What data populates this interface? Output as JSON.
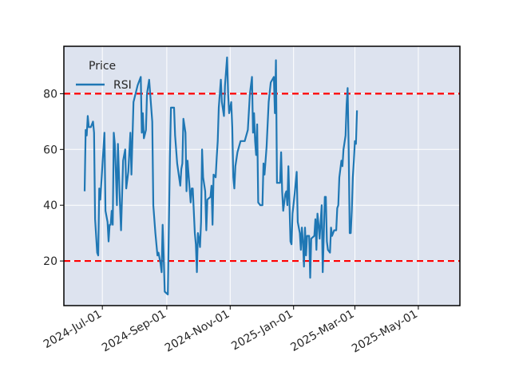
{
  "chart_data": {
    "type": "line",
    "title": "",
    "xlabel": "",
    "ylabel": "",
    "legend_title": "Price",
    "legend_location": "top-left",
    "grid": true,
    "xlim": [
      "2024-05-25",
      "2025-06-10"
    ],
    "ylim": [
      4,
      97
    ],
    "x_ticks": [
      "2024-07-01",
      "2024-09-01",
      "2024-11-01",
      "2025-01-01",
      "2025-03-01",
      "2025-05-01"
    ],
    "x_tick_labels": [
      "2024-Jul-01",
      "2024-Sep-01",
      "2024-Nov-01",
      "2025-Jan-01",
      "2025-Mar-01",
      "2025-May-01"
    ],
    "y_ticks": [
      20,
      40,
      60,
      80
    ],
    "y_tick_labels": [
      "20",
      "40",
      "60",
      "80"
    ],
    "reference_lines": [
      {
        "value": 80,
        "color": "#ff0000",
        "style": "dashed"
      },
      {
        "value": 20,
        "color": "#ff0000",
        "style": "dashed"
      }
    ],
    "series": [
      {
        "name": "RSI",
        "color": "#1f77b4",
        "points": [
          [
            "2024-06-14",
            45
          ],
          [
            "2024-06-15",
            67
          ],
          [
            "2024-06-16",
            65
          ],
          [
            "2024-06-17",
            72
          ],
          [
            "2024-06-18",
            68
          ],
          [
            "2024-06-20",
            68
          ],
          [
            "2024-06-22",
            70
          ],
          [
            "2024-06-23",
            66
          ],
          [
            "2024-06-24",
            35
          ],
          [
            "2024-06-26",
            23
          ],
          [
            "2024-06-27",
            22
          ],
          [
            "2024-06-28",
            46
          ],
          [
            "2024-06-29",
            42
          ],
          [
            "2024-07-02",
            60
          ],
          [
            "2024-07-03",
            66
          ],
          [
            "2024-07-04",
            38
          ],
          [
            "2024-07-06",
            34
          ],
          [
            "2024-07-07",
            27
          ],
          [
            "2024-07-08",
            33
          ],
          [
            "2024-07-09",
            33
          ],
          [
            "2024-07-10",
            38
          ],
          [
            "2024-07-11",
            33
          ],
          [
            "2024-07-12",
            66
          ],
          [
            "2024-07-13",
            62
          ],
          [
            "2024-07-14",
            52
          ],
          [
            "2024-07-15",
            40
          ],
          [
            "2024-07-16",
            62
          ],
          [
            "2024-07-18",
            40
          ],
          [
            "2024-07-19",
            31
          ],
          [
            "2024-07-21",
            56
          ],
          [
            "2024-07-23",
            60
          ],
          [
            "2024-07-24",
            46
          ],
          [
            "2024-07-26",
            52
          ],
          [
            "2024-07-28",
            66
          ],
          [
            "2024-07-29",
            51
          ],
          [
            "2024-07-31",
            77
          ],
          [
            "2024-08-02",
            80
          ],
          [
            "2024-08-04",
            83
          ],
          [
            "2024-08-07",
            86
          ],
          [
            "2024-08-08",
            66
          ],
          [
            "2024-08-09",
            73
          ],
          [
            "2024-08-10",
            64
          ],
          [
            "2024-08-12",
            67
          ],
          [
            "2024-08-13",
            80
          ],
          [
            "2024-08-15",
            85
          ],
          [
            "2024-08-18",
            70
          ],
          [
            "2024-08-19",
            40
          ],
          [
            "2024-08-21",
            30
          ],
          [
            "2024-08-23",
            22
          ],
          [
            "2024-08-24",
            23
          ],
          [
            "2024-08-26",
            19
          ],
          [
            "2024-08-27",
            16
          ],
          [
            "2024-08-28",
            33
          ],
          [
            "2024-08-29",
            22
          ],
          [
            "2024-08-30",
            9
          ],
          [
            "2024-09-02",
            8
          ],
          [
            "2024-09-04",
            57
          ],
          [
            "2024-09-05",
            75
          ],
          [
            "2024-09-08",
            75
          ],
          [
            "2024-09-09",
            65
          ],
          [
            "2024-09-11",
            55
          ],
          [
            "2024-09-14",
            47
          ],
          [
            "2024-09-15",
            53
          ],
          [
            "2024-09-16",
            55
          ],
          [
            "2024-09-17",
            71
          ],
          [
            "2024-09-19",
            66
          ],
          [
            "2024-09-20",
            45
          ],
          [
            "2024-09-21",
            56
          ],
          [
            "2024-09-22",
            51
          ],
          [
            "2024-09-24",
            41
          ],
          [
            "2024-09-25",
            46
          ],
          [
            "2024-09-26",
            46
          ],
          [
            "2024-09-28",
            30
          ],
          [
            "2024-09-29",
            26
          ],
          [
            "2024-09-30",
            16
          ],
          [
            "2024-10-01",
            30
          ],
          [
            "2024-10-02",
            28
          ],
          [
            "2024-10-03",
            25
          ],
          [
            "2024-10-04",
            34
          ],
          [
            "2024-10-05",
            60
          ],
          [
            "2024-10-06",
            50
          ],
          [
            "2024-10-08",
            45
          ],
          [
            "2024-10-09",
            31
          ],
          [
            "2024-10-10",
            42
          ],
          [
            "2024-10-13",
            43
          ],
          [
            "2024-10-14",
            47
          ],
          [
            "2024-10-15",
            33
          ],
          [
            "2024-10-16",
            51
          ],
          [
            "2024-10-18",
            50
          ],
          [
            "2024-10-19",
            57
          ],
          [
            "2024-10-20",
            63
          ],
          [
            "2024-10-21",
            75
          ],
          [
            "2024-10-23",
            85
          ],
          [
            "2024-10-24",
            77
          ],
          [
            "2024-10-26",
            72
          ],
          [
            "2024-10-27",
            83
          ],
          [
            "2024-10-29",
            93
          ],
          [
            "2024-10-30",
            80
          ],
          [
            "2024-10-31",
            73
          ],
          [
            "2024-11-02",
            77
          ],
          [
            "2024-11-03",
            68
          ],
          [
            "2024-11-04",
            50
          ],
          [
            "2024-11-05",
            46
          ],
          [
            "2024-11-06",
            54
          ],
          [
            "2024-11-08",
            59
          ],
          [
            "2024-11-11",
            63
          ],
          [
            "2024-11-15",
            63
          ],
          [
            "2024-11-18",
            67
          ],
          [
            "2024-11-20",
            80
          ],
          [
            "2024-11-22",
            86
          ],
          [
            "2024-11-23",
            66
          ],
          [
            "2024-11-24",
            73
          ],
          [
            "2024-11-25",
            63
          ],
          [
            "2024-11-26",
            58
          ],
          [
            "2024-11-27",
            69
          ],
          [
            "2024-11-28",
            41
          ],
          [
            "2024-11-30",
            40
          ],
          [
            "2024-12-02",
            40
          ],
          [
            "2024-12-03",
            55
          ],
          [
            "2024-12-04",
            51
          ],
          [
            "2024-12-06",
            61
          ],
          [
            "2024-12-08",
            77
          ],
          [
            "2024-12-10",
            84
          ],
          [
            "2024-12-13",
            86
          ],
          [
            "2024-12-14",
            73
          ],
          [
            "2024-12-15",
            92
          ],
          [
            "2024-12-16",
            48
          ],
          [
            "2024-12-19",
            48
          ],
          [
            "2024-12-20",
            59
          ],
          [
            "2024-12-21",
            45
          ],
          [
            "2024-12-22",
            38
          ],
          [
            "2024-12-24",
            44
          ],
          [
            "2024-12-25",
            45
          ],
          [
            "2024-12-26",
            40
          ],
          [
            "2024-12-27",
            54
          ],
          [
            "2024-12-28",
            41
          ],
          [
            "2024-12-29",
            27
          ],
          [
            "2024-12-30",
            26
          ],
          [
            "2024-12-31",
            37
          ],
          [
            "2025-01-02",
            44
          ],
          [
            "2025-01-04",
            52
          ],
          [
            "2025-01-05",
            34
          ],
          [
            "2025-01-07",
            30
          ],
          [
            "2025-01-08",
            24
          ],
          [
            "2025-01-09",
            32
          ],
          [
            "2025-01-10",
            27
          ],
          [
            "2025-01-11",
            18
          ],
          [
            "2025-01-12",
            32
          ],
          [
            "2025-01-13",
            22
          ],
          [
            "2025-01-14",
            29
          ],
          [
            "2025-01-16",
            29
          ],
          [
            "2025-01-17",
            14
          ],
          [
            "2025-01-18",
            28
          ],
          [
            "2025-01-21",
            29
          ],
          [
            "2025-01-22",
            35
          ],
          [
            "2025-01-23",
            24
          ],
          [
            "2025-01-24",
            37
          ],
          [
            "2025-01-25",
            33
          ],
          [
            "2025-01-26",
            28
          ],
          [
            "2025-01-27",
            34
          ],
          [
            "2025-01-28",
            40
          ],
          [
            "2025-01-29",
            16
          ],
          [
            "2025-01-30",
            29
          ],
          [
            "2025-01-31",
            43
          ],
          [
            "2025-02-01",
            43
          ],
          [
            "2025-02-02",
            27
          ],
          [
            "2025-02-03",
            24
          ],
          [
            "2025-02-05",
            23
          ],
          [
            "2025-02-06",
            32
          ],
          [
            "2025-02-07",
            29
          ],
          [
            "2025-02-09",
            31
          ],
          [
            "2025-02-11",
            31
          ],
          [
            "2025-02-12",
            39
          ],
          [
            "2025-02-13",
            40
          ],
          [
            "2025-02-14",
            50
          ],
          [
            "2025-02-16",
            56
          ],
          [
            "2025-02-17",
            54
          ],
          [
            "2025-02-18",
            60
          ],
          [
            "2025-02-20",
            65
          ],
          [
            "2025-02-21",
            76
          ],
          [
            "2025-02-22",
            82
          ],
          [
            "2025-02-23",
            60
          ],
          [
            "2025-02-24",
            30
          ],
          [
            "2025-02-25",
            30
          ],
          [
            "2025-02-26",
            38
          ],
          [
            "2025-02-27",
            50
          ],
          [
            "2025-02-28",
            56
          ],
          [
            "2025-03-01",
            63
          ],
          [
            "2025-03-02",
            62
          ],
          [
            "2025-03-03",
            74
          ]
        ]
      }
    ]
  }
}
